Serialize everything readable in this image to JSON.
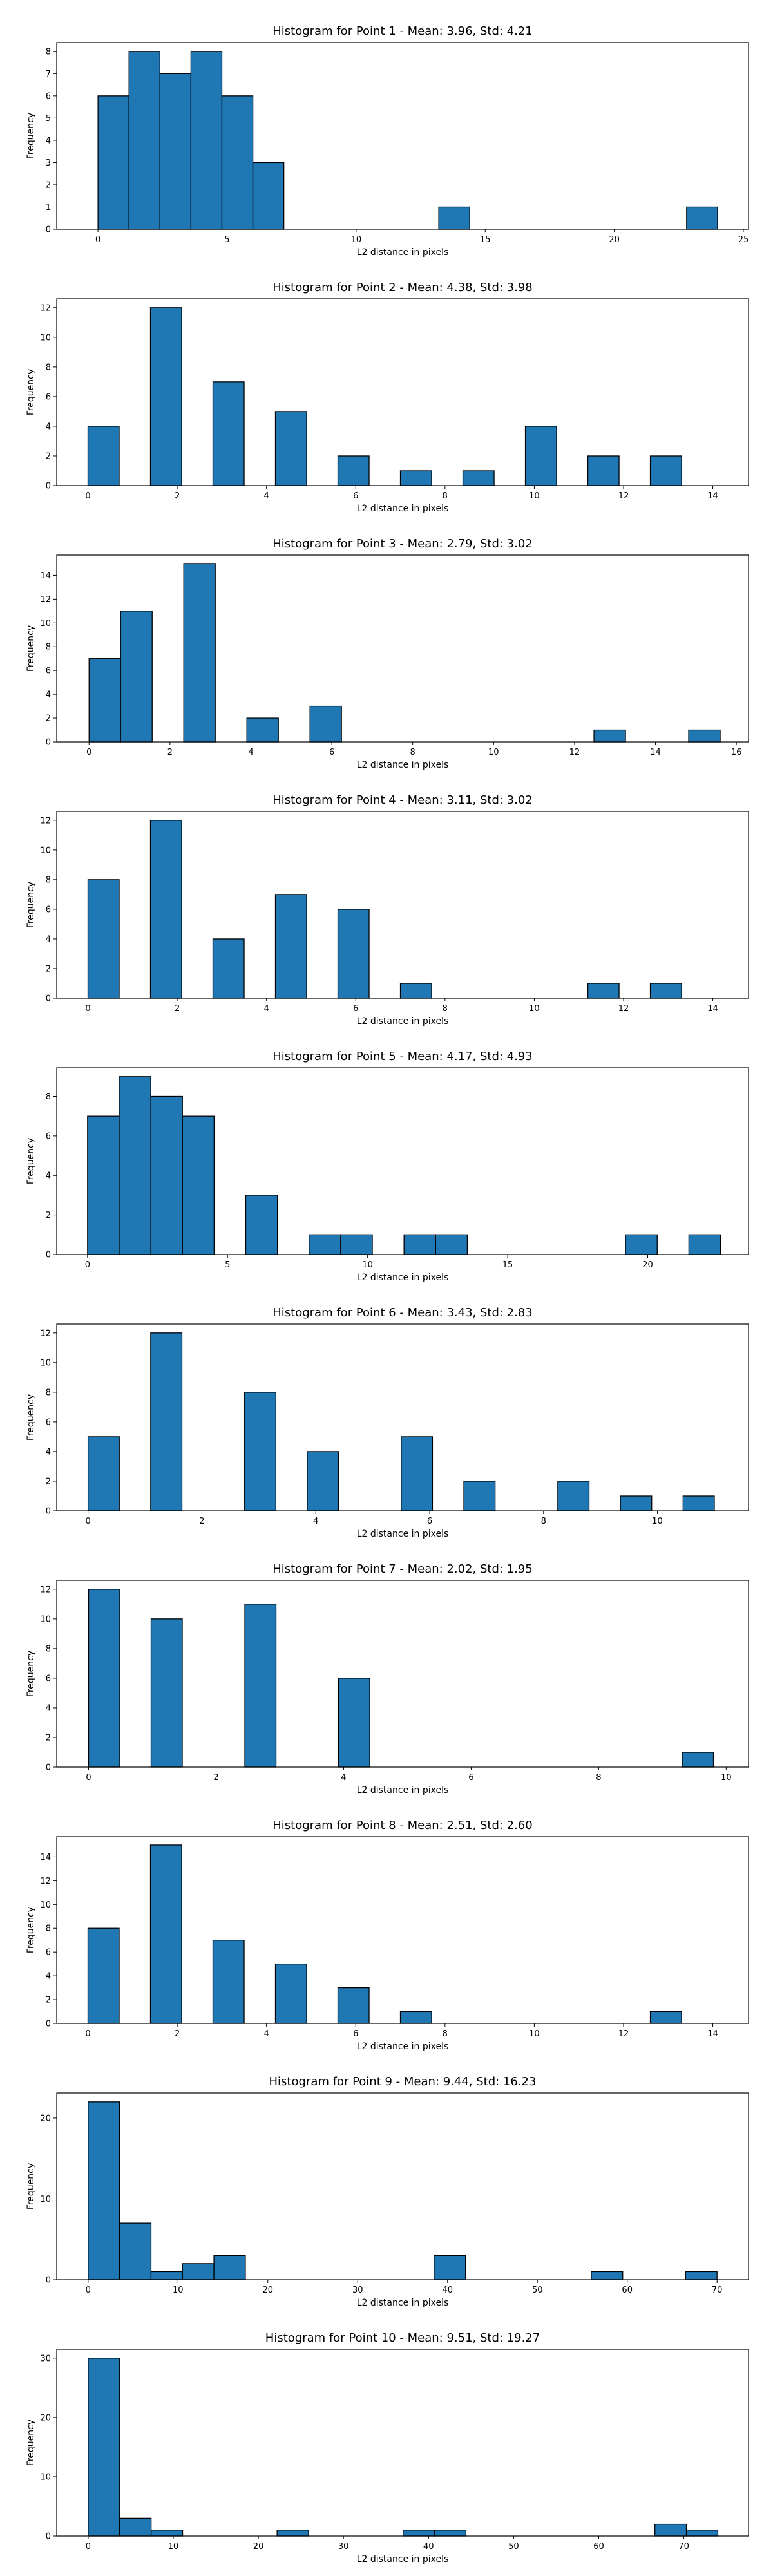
{
  "figure": {
    "bar_color": "#1f77b4",
    "edge_color": "#000000",
    "background": "#ffffff"
  },
  "chart_data": [
    {
      "type": "bar",
      "title": "Histogram for Point 1 - Mean: 3.96, Std: 4.21",
      "xlabel": "L2 distance in pixels",
      "ylabel": "Frequency",
      "xlim": [
        -1.6,
        25.2
      ],
      "ylim": [
        0,
        8.4
      ],
      "xticks": [
        0,
        5,
        10,
        15,
        20,
        25
      ],
      "yticks": [
        0,
        1,
        2,
        3,
        4,
        5,
        6,
        7,
        8
      ],
      "bin_width": 1.2,
      "bins": [
        {
          "x0": 0.0,
          "count": 6
        },
        {
          "x0": 1.2,
          "count": 8
        },
        {
          "x0": 2.4,
          "count": 7
        },
        {
          "x0": 3.6,
          "count": 8
        },
        {
          "x0": 4.8,
          "count": 6
        },
        {
          "x0": 6.0,
          "count": 3
        },
        {
          "x0": 13.2,
          "count": 1
        },
        {
          "x0": 22.8,
          "count": 1
        }
      ]
    },
    {
      "type": "bar",
      "title": "Histogram for Point 2 - Mean: 4.38, Std: 3.98",
      "xlabel": "L2 distance in pixels",
      "ylabel": "Frequency",
      "xlim": [
        -0.7,
        14.8
      ],
      "ylim": [
        0,
        12.6
      ],
      "xticks": [
        0,
        2,
        4,
        6,
        8,
        10,
        12,
        14
      ],
      "yticks": [
        0,
        2,
        4,
        6,
        8,
        10,
        12
      ],
      "bin_width": 0.7,
      "bins": [
        {
          "x0": 0.0,
          "count": 4
        },
        {
          "x0": 1.4,
          "count": 12
        },
        {
          "x0": 2.8,
          "count": 7
        },
        {
          "x0": 4.2,
          "count": 5
        },
        {
          "x0": 5.6,
          "count": 2
        },
        {
          "x0": 7.0,
          "count": 1
        },
        {
          "x0": 8.4,
          "count": 1
        },
        {
          "x0": 9.8,
          "count": 4
        },
        {
          "x0": 11.2,
          "count": 2
        },
        {
          "x0": 12.6,
          "count": 2
        }
      ]
    },
    {
      "type": "bar",
      "title": "Histogram for Point 3 - Mean: 2.79, Std: 3.02",
      "xlabel": "L2 distance in pixels",
      "ylabel": "Frequency",
      "xlim": [
        -0.8,
        16.3
      ],
      "ylim": [
        0,
        15.7
      ],
      "xticks": [
        0,
        2,
        4,
        6,
        8,
        10,
        12,
        14,
        16
      ],
      "yticks": [
        0,
        2,
        4,
        6,
        8,
        10,
        12,
        14
      ],
      "bin_width": 0.78,
      "bins": [
        {
          "x0": 0.0,
          "count": 7
        },
        {
          "x0": 0.78,
          "count": 11
        },
        {
          "x0": 2.34,
          "count": 15
        },
        {
          "x0": 3.9,
          "count": 2
        },
        {
          "x0": 5.46,
          "count": 3
        },
        {
          "x0": 12.48,
          "count": 1
        },
        {
          "x0": 14.82,
          "count": 1
        }
      ]
    },
    {
      "type": "bar",
      "title": "Histogram for Point 4 - Mean: 3.11, Std: 3.02",
      "xlabel": "L2 distance in pixels",
      "ylabel": "Frequency",
      "xlim": [
        -0.7,
        14.8
      ],
      "ylim": [
        0,
        12.6
      ],
      "xticks": [
        0,
        2,
        4,
        6,
        8,
        10,
        12,
        14
      ],
      "yticks": [
        0,
        2,
        4,
        6,
        8,
        10,
        12
      ],
      "bin_width": 0.7,
      "bins": [
        {
          "x0": 0.0,
          "count": 8
        },
        {
          "x0": 1.4,
          "count": 12
        },
        {
          "x0": 2.8,
          "count": 4
        },
        {
          "x0": 4.2,
          "count": 7
        },
        {
          "x0": 5.6,
          "count": 6
        },
        {
          "x0": 7.0,
          "count": 1
        },
        {
          "x0": 11.2,
          "count": 1
        },
        {
          "x0": 12.6,
          "count": 1
        }
      ]
    },
    {
      "type": "bar",
      "title": "Histogram for Point 5 - Mean: 4.17, Std: 4.93",
      "xlabel": "L2 distance in pixels",
      "ylabel": "Frequency",
      "xlim": [
        -1.1,
        23.6
      ],
      "ylim": [
        0,
        9.45
      ],
      "xticks": [
        0,
        5,
        10,
        15,
        20
      ],
      "yticks": [
        0,
        2,
        4,
        6,
        8
      ],
      "bin_width": 1.13,
      "bins": [
        {
          "x0": 0.0,
          "count": 7
        },
        {
          "x0": 1.13,
          "count": 9
        },
        {
          "x0": 2.26,
          "count": 8
        },
        {
          "x0": 3.39,
          "count": 7
        },
        {
          "x0": 5.65,
          "count": 3
        },
        {
          "x0": 7.91,
          "count": 1
        },
        {
          "x0": 9.04,
          "count": 1
        },
        {
          "x0": 11.3,
          "count": 1
        },
        {
          "x0": 12.43,
          "count": 1
        },
        {
          "x0": 19.21,
          "count": 1
        },
        {
          "x0": 21.47,
          "count": 1
        }
      ]
    },
    {
      "type": "bar",
      "title": "Histogram for Point 6 - Mean: 3.43, Std: 2.83",
      "xlabel": "L2 distance in pixels",
      "ylabel": "Frequency",
      "xlim": [
        -0.55,
        11.6
      ],
      "ylim": [
        0,
        12.6
      ],
      "xticks": [
        0,
        2,
        4,
        6,
        8,
        10
      ],
      "yticks": [
        0,
        2,
        4,
        6,
        8,
        10,
        12
      ],
      "bin_width": 0.55,
      "bins": [
        {
          "x0": 0.0,
          "count": 5
        },
        {
          "x0": 1.1,
          "count": 12
        },
        {
          "x0": 2.75,
          "count": 8
        },
        {
          "x0": 3.85,
          "count": 4
        },
        {
          "x0": 5.5,
          "count": 5
        },
        {
          "x0": 6.6,
          "count": 2
        },
        {
          "x0": 8.25,
          "count": 2
        },
        {
          "x0": 9.35,
          "count": 1
        },
        {
          "x0": 10.45,
          "count": 1
        }
      ]
    },
    {
      "type": "bar",
      "title": "Histogram for Point 7 - Mean: 2.02, Std: 1.95",
      "xlabel": "L2 distance in pixels",
      "ylabel": "Frequency",
      "xlim": [
        -0.5,
        10.35
      ],
      "ylim": [
        0,
        12.6
      ],
      "xticks": [
        0,
        2,
        4,
        6,
        8,
        10
      ],
      "yticks": [
        0,
        2,
        4,
        6,
        8,
        10,
        12
      ],
      "bin_width": 0.49,
      "bins": [
        {
          "x0": 0.0,
          "count": 12
        },
        {
          "x0": 0.98,
          "count": 10
        },
        {
          "x0": 2.45,
          "count": 11
        },
        {
          "x0": 3.92,
          "count": 6
        },
        {
          "x0": 9.31,
          "count": 1
        }
      ]
    },
    {
      "type": "bar",
      "title": "Histogram for Point 8 - Mean: 2.51, Std: 2.60",
      "xlabel": "L2 distance in pixels",
      "ylabel": "Frequency",
      "xlim": [
        -0.7,
        14.8
      ],
      "ylim": [
        0,
        15.7
      ],
      "xticks": [
        0,
        2,
        4,
        6,
        8,
        10,
        12,
        14
      ],
      "yticks": [
        0,
        2,
        4,
        6,
        8,
        10,
        12,
        14
      ],
      "bin_width": 0.7,
      "bins": [
        {
          "x0": 0.0,
          "count": 8
        },
        {
          "x0": 1.4,
          "count": 15
        },
        {
          "x0": 2.8,
          "count": 7
        },
        {
          "x0": 4.2,
          "count": 5
        },
        {
          "x0": 5.6,
          "count": 3
        },
        {
          "x0": 7.0,
          "count": 1
        },
        {
          "x0": 12.6,
          "count": 1
        }
      ]
    },
    {
      "type": "bar",
      "title": "Histogram for Point 9 - Mean: 9.44, Std: 16.23",
      "xlabel": "L2 distance in pixels",
      "ylabel": "Frequency",
      "xlim": [
        -3.5,
        73.5
      ],
      "ylim": [
        0,
        23.1
      ],
      "xticks": [
        0,
        10,
        20,
        30,
        40,
        50,
        60,
        70
      ],
      "yticks": [
        0,
        10,
        20
      ],
      "bin_width": 3.5,
      "bins": [
        {
          "x0": 0.0,
          "count": 22
        },
        {
          "x0": 3.5,
          "count": 7
        },
        {
          "x0": 7.0,
          "count": 1
        },
        {
          "x0": 10.5,
          "count": 2
        },
        {
          "x0": 14.0,
          "count": 3
        },
        {
          "x0": 38.5,
          "count": 3
        },
        {
          "x0": 56.0,
          "count": 1
        },
        {
          "x0": 66.5,
          "count": 1
        }
      ]
    },
    {
      "type": "bar",
      "title": "Histogram for Point 10 - Mean: 9.51, Std: 19.27",
      "xlabel": "L2 distance in pixels",
      "ylabel": "Frequency",
      "xlim": [
        -3.7,
        77.6
      ],
      "ylim": [
        0,
        31.5
      ],
      "xticks": [
        0,
        10,
        20,
        30,
        40,
        50,
        60,
        70
      ],
      "yticks": [
        0,
        10,
        20,
        30
      ],
      "bin_width": 3.7,
      "bins": [
        {
          "x0": 0.0,
          "count": 30
        },
        {
          "x0": 3.7,
          "count": 3
        },
        {
          "x0": 7.4,
          "count": 1
        },
        {
          "x0": 22.2,
          "count": 1
        },
        {
          "x0": 37.0,
          "count": 1
        },
        {
          "x0": 40.7,
          "count": 1
        },
        {
          "x0": 66.6,
          "count": 2
        },
        {
          "x0": 70.3,
          "count": 1
        }
      ]
    }
  ]
}
